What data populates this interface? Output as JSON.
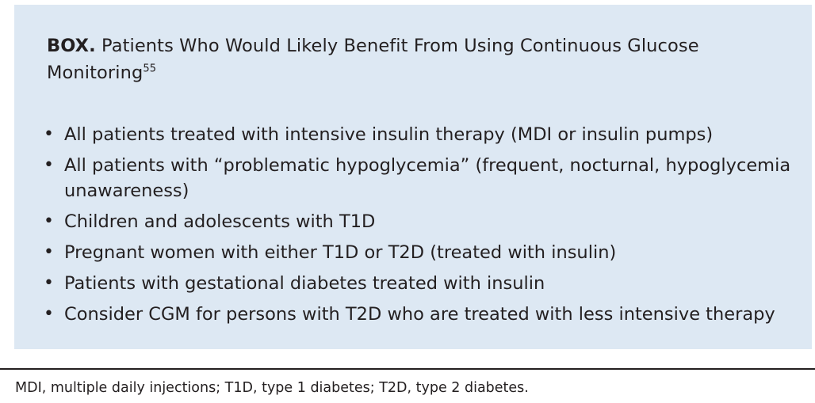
{
  "box": {
    "label": "BOX.",
    "title": "Patients Who Would Likely Benefit From Using Continuous Glucose Monitoring",
    "ref": "55",
    "bullet_glyph": "•",
    "items": [
      "All patients treated with intensive insulin therapy (MDI or insulin pumps)",
      "All patients with “problematic hypoglycemia” (frequent, nocturnal, hypoglycemia unawareness)",
      "Children and adolescents with T1D",
      "Pregnant women with either T1D or T2D (treated with insulin)",
      "Patients with gestational diabetes treated with insulin",
      "Consider CGM for persons with T2D who are treated with less intensive therapy"
    ]
  },
  "footnote": "MDI, multiple daily injections; T1D, type 1 diabetes; T2D, type 2 diabetes.",
  "colors": {
    "box_background": "#dde8f3",
    "text": "#231f20"
  }
}
